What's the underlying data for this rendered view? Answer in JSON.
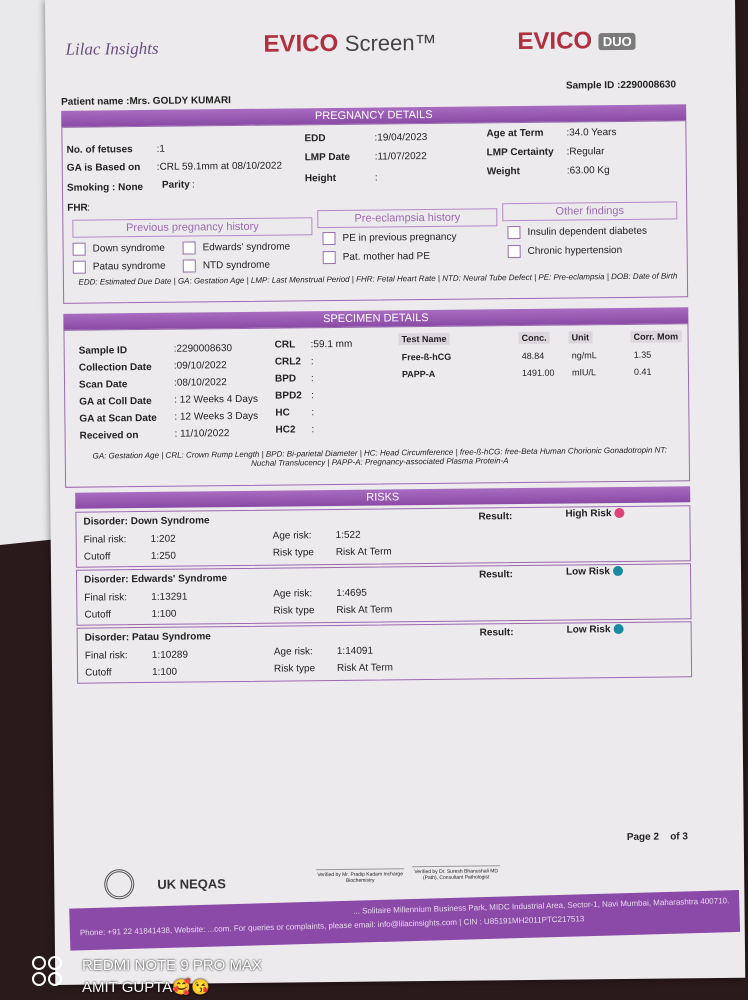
{
  "brand": {
    "company": "Lilac Insights",
    "product1": "EVICO",
    "product1_suffix": "Screen™",
    "product2": "EVICO",
    "product2_badge": "DUO"
  },
  "patient": {
    "name_label": "Patient name :",
    "name": "Mrs. GOLDY KUMARI",
    "sample_id_label": "Sample ID :",
    "sample_id": "2290008630"
  },
  "pregnancy": {
    "title": "PREGNANCY DETAILS",
    "fields": [
      {
        "label": "No. of fetuses",
        "value": ":1"
      },
      {
        "label": "GA is Based on",
        "value": ":CRL 59.1mm at 08/10/2022"
      },
      {
        "label": "Smoking : None",
        "value": ""
      },
      {
        "label": "Parity",
        "value": ":"
      },
      {
        "label": "FHR",
        "value": ":"
      },
      {
        "label": "EDD",
        "value": ":19/04/2023"
      },
      {
        "label": "LMP Date",
        "value": ":11/07/2022"
      },
      {
        "label": "Height",
        "value": ":"
      },
      {
        "label": "Age at Term",
        "value": ":34.0 Years"
      },
      {
        "label": "LMP Certainty",
        "value": ":Regular"
      },
      {
        "label": "Weight",
        "value": ":63.00 Kg"
      }
    ],
    "history": {
      "previous_title": "Previous pregnancy history",
      "previous": [
        "Down syndrome",
        "Edwards' syndrome",
        "Patau syndrome",
        "NTD syndrome"
      ],
      "pe_title": "Pre-eclampsia history",
      "pe": [
        "PE in previous pregnancy",
        "Pat. mother had PE"
      ],
      "other_title": "Other findings",
      "other": [
        "Insulin dependent diabetes",
        "Chronic hypertension"
      ]
    },
    "note": "EDD: Estimated Due Date | GA: Gestation Age | LMP: Last Menstrual Period | FHR: Fetal Heart Rate | NTD: Neural Tube Defect | PE: Pre-eclampsia | DOB: Date of Birth"
  },
  "specimen": {
    "title": "SPECIMEN DETAILS",
    "left": [
      {
        "label": "Sample ID",
        "value": ":2290008630"
      },
      {
        "label": "Collection Date",
        "value": ":09/10/2022"
      },
      {
        "label": "Scan Date",
        "value": ":08/10/2022"
      },
      {
        "label": "GA at Coll Date",
        "value": ": 12 Weeks 4 Days"
      },
      {
        "label": "GA at Scan Date",
        "value": ": 12 Weeks 3 Days"
      },
      {
        "label": "Received on",
        "value": ": 11/10/2022"
      }
    ],
    "mid": [
      {
        "label": "CRL",
        "value": ":59.1 mm"
      },
      {
        "label": "CRL2",
        "value": ":"
      },
      {
        "label": "BPD",
        "value": ":"
      },
      {
        "label": "BPD2",
        "value": ":"
      },
      {
        "label": "HC",
        "value": ":"
      },
      {
        "label": "HC2",
        "value": ":"
      }
    ],
    "table": {
      "headers": [
        "Test Name",
        "Conc.",
        "Unit",
        "Corr. Mom"
      ],
      "rows": [
        [
          "Free-ß-hCG",
          "48.84",
          "ng/mL",
          "1.35"
        ],
        [
          "PAPP-A",
          "1491.00",
          "mIU/L",
          "0.41"
        ]
      ]
    },
    "note": "GA: Gestation Age | CRL: Crown Rump Length | BPD: Bi-parietal Diameter | HC: Head Circumference | free-ß-hCG: free-Beta Human Chorionic Gonadotropin NT: Nuchal Translucency | PAPP-A: Pregnancy-associated Plasma Protein-A"
  },
  "risks": {
    "title": "RISKS",
    "labels": {
      "final": "Final risk:",
      "cutoff": "Cutoff",
      "age": "Age risk:",
      "type": "Risk type",
      "result": "Result:"
    },
    "items": [
      {
        "disorder": "Disorder: Down Syndrome",
        "final": "1:202",
        "cutoff": "1:250",
        "age": "1:522",
        "type": "Risk At Term",
        "result": "High Risk",
        "color": "#e0407a"
      },
      {
        "disorder": "Disorder: Edwards' Syndrome",
        "final": "1:13291",
        "cutoff": "1:100",
        "age": "1:4695",
        "type": "Risk At Term",
        "result": "Low Risk",
        "color": "#1a8aa0"
      },
      {
        "disorder": "Disorder: Patau Syndrome",
        "final": "1:10289",
        "cutoff": "1:100",
        "age": "1:14091",
        "type": "Risk At Term",
        "result": "Low Risk",
        "color": "#1a8aa0"
      }
    ]
  },
  "page": {
    "label": "Page 2",
    "of": "of 3"
  },
  "footer": {
    "accreditation": "UK NEQAS",
    "verified1": "Verified by Mr. Pradip Kadam Incharge Biochemistry",
    "verified2": "Verified by Dr. Suresh Bhanushali MD (Path), Consultant Pathologist",
    "address": "... Solitaire Millennium Business Park, MIDC Industrial Area, Sector-1, Navi Mumbai, Maharashtra 400710.",
    "contact": "Phone: +91 22 41841438, Website: ...com. For queries or complaints, please email: info@lilacinsights.com | CIN : U85191MH2011PTC217513"
  },
  "watermark": {
    "line1": "REDMI NOTE 9 PRO MAX",
    "line2": "AMIT GUPTA🥰😘"
  }
}
